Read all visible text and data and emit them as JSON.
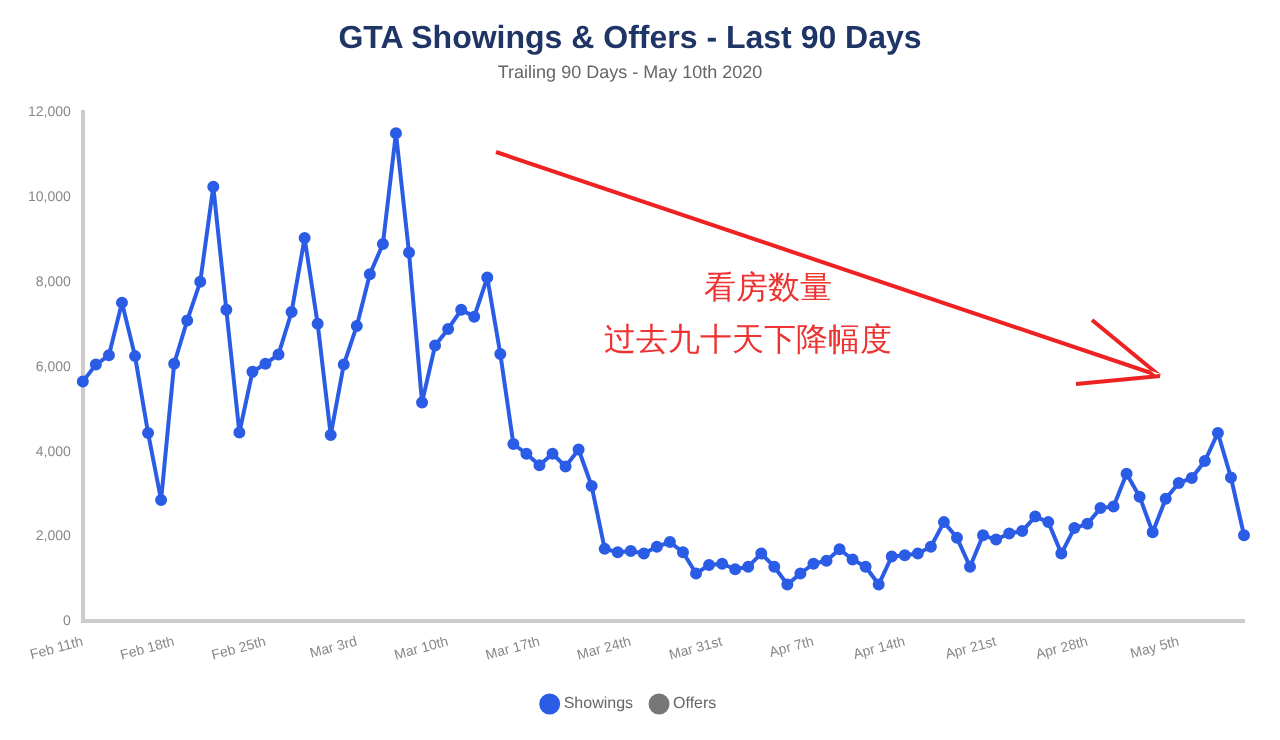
{
  "chart_data": {
    "type": "line",
    "title": "GTA Showings & Offers - Last 90 Days",
    "subtitle": "Trailing 90 Days - May 10th 2020",
    "annotations": [
      "看房数量",
      "过去九十天下降幅度"
    ],
    "categories": [
      "Feb 11th",
      null,
      null,
      null,
      null,
      null,
      null,
      "Feb 18th",
      null,
      null,
      null,
      null,
      null,
      null,
      "Feb 25th",
      null,
      null,
      null,
      null,
      null,
      null,
      "Mar 3rd",
      null,
      null,
      null,
      null,
      null,
      null,
      "Mar 10th",
      null,
      null,
      null,
      null,
      null,
      null,
      "Mar 17th",
      null,
      null,
      null,
      null,
      null,
      null,
      "Mar 24th",
      null,
      null,
      null,
      null,
      null,
      null,
      "Mar 31st",
      null,
      null,
      null,
      null,
      null,
      null,
      "Apr 7th",
      null,
      null,
      null,
      null,
      null,
      null,
      "Apr 14th",
      null,
      null,
      null,
      null,
      null,
      null,
      "Apr 21st",
      null,
      null,
      null,
      null,
      null,
      null,
      "Apr 28th",
      null,
      null,
      null,
      null,
      null,
      null,
      "May 5th",
      null,
      null,
      null,
      null,
      null
    ],
    "series": [
      {
        "name": "Showings",
        "color": "#2b5ce6",
        "values": [
          5650,
          6050,
          6270,
          7510,
          6250,
          4440,
          2860,
          6070,
          7090,
          8000,
          10240,
          7340,
          4450,
          5880,
          6070,
          6290,
          7290,
          9030,
          7010,
          4390,
          6050,
          6960,
          8180,
          8890,
          11500,
          8690,
          5160,
          6500,
          6890,
          7340,
          7180,
          8100,
          6300,
          4180,
          3950,
          3680,
          3950,
          3650,
          4050,
          3190,
          1710,
          1630,
          1660,
          1600,
          1760,
          1870,
          1630,
          1130,
          1330,
          1360,
          1230,
          1290,
          1600,
          1290,
          870,
          1130,
          1360,
          1430,
          1700,
          1460,
          1290,
          870,
          1530,
          1560,
          1600,
          1760,
          2340,
          1970,
          1290,
          2030,
          1930,
          2070,
          2130,
          2470,
          2340,
          1600,
          2200,
          2300,
          2670,
          2710,
          3480,
          2940,
          2100,
          2890,
          3260,
          3380,
          3780,
          4440,
          3390,
          2030
        ]
      },
      {
        "name": "Offers",
        "color": "#777777",
        "values": [
          null,
          null,
          null,
          null,
          null,
          null,
          null,
          null,
          null,
          null,
          null,
          null,
          null,
          null,
          null,
          null,
          null,
          null,
          null,
          null,
          null,
          null,
          null,
          null,
          null,
          null,
          null,
          null,
          null,
          null,
          null,
          null,
          null,
          null,
          null,
          null,
          null,
          null,
          null,
          null,
          null,
          null,
          null,
          null,
          null,
          null,
          null,
          null,
          null,
          null,
          null,
          null,
          null,
          null,
          null,
          null,
          null,
          null,
          null,
          null,
          null,
          null,
          null,
          null,
          null,
          null,
          null,
          null,
          null,
          null,
          null,
          null,
          null,
          null,
          null,
          null,
          null,
          null,
          null,
          null,
          null,
          null,
          null,
          null,
          null,
          null,
          null,
          null,
          null,
          null
        ]
      }
    ],
    "ylim": [
      0,
      12000
    ],
    "yticks": [
      0,
      {
        "value": 2000,
        "label": "2,000"
      },
      {
        "value": 4000,
        "label": "4,000"
      },
      {
        "value": 6000,
        "label": "6,000"
      },
      {
        "value": 8000,
        "label": "8,000"
      },
      {
        "value": 10000,
        "label": "10,000"
      },
      {
        "value": 12000,
        "label": "12,000"
      }
    ],
    "grid": false,
    "legend": "bottom",
    "marker": "circle",
    "line_style": "solid"
  }
}
